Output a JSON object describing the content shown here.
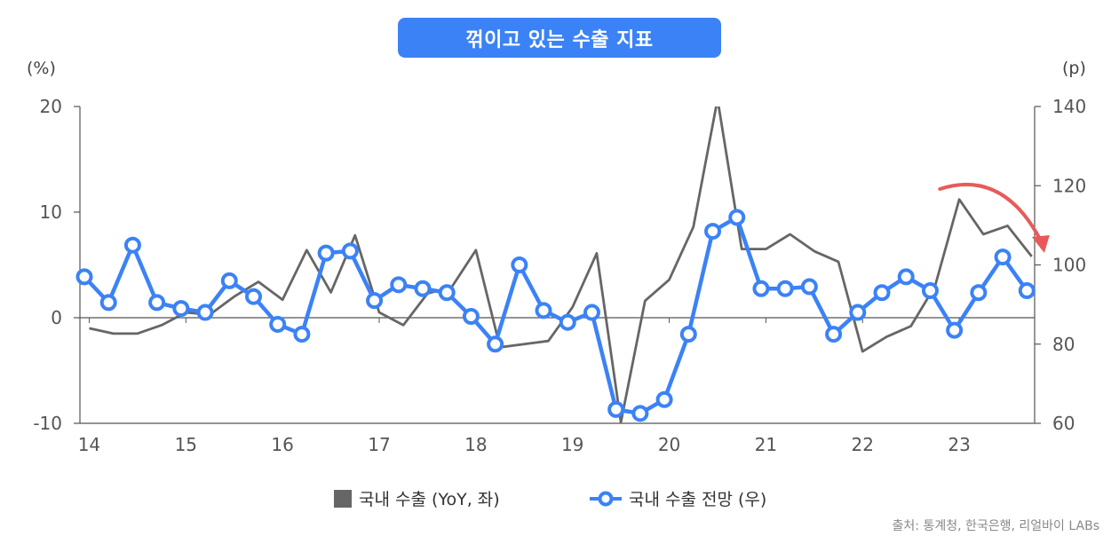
{
  "title": "꺾이고 있는 수출 지표",
  "source": "출처: 통계청, 한국은행, 리얼바이 LABs",
  "chart_data": {
    "type": "line",
    "left_axis": {
      "unit_label": "(%)",
      "ylim": [
        -10,
        20
      ],
      "ticks": [
        "20",
        "10",
        "0",
        "-10"
      ],
      "tick_values": [
        20,
        10,
        0,
        -10
      ]
    },
    "right_axis": {
      "unit_label": "(p)",
      "ylim": [
        60,
        140
      ],
      "ticks": [
        "140",
        "120",
        "100",
        "80",
        "60"
      ],
      "tick_values": [
        140,
        120,
        100,
        80,
        60
      ]
    },
    "x_ticks": [
      "14",
      "15",
      "16",
      "17",
      "18",
      "19",
      "20",
      "21",
      "22",
      "23"
    ],
    "x_tick_values": [
      2014,
      2015,
      2016,
      2017,
      2018,
      2019,
      2020,
      2021,
      2022,
      2023
    ],
    "xlim": [
      2013.95,
      2023.78
    ],
    "series": [
      {
        "name": "국내 수출 (YoY, 좌)",
        "axis": "left",
        "color": "#666666",
        "x": [
          2014.0,
          2014.25,
          2014.5,
          2014.75,
          2015.0,
          2015.25,
          2015.5,
          2015.75,
          2016.0,
          2016.25,
          2016.5,
          2016.75,
          2017.0,
          2017.25,
          2017.5,
          2017.75,
          2018.0,
          2018.25,
          2018.5,
          2018.75,
          2019.0,
          2019.25,
          2019.5,
          2019.75,
          2020.0,
          2020.25,
          2020.5,
          2020.75,
          2021.0,
          2021.25,
          2021.5,
          2021.75,
          2022.0,
          2022.25,
          2022.5,
          2022.75,
          2023.0,
          2023.25,
          2023.5,
          2023.75
        ],
        "values": [
          -1.0,
          -1.5,
          -1.5,
          -0.7,
          0.5,
          0.3,
          2.0,
          3.4,
          1.7,
          6.4,
          2.4,
          7.8,
          0.5,
          -0.7,
          2.3,
          2.9,
          6.4,
          -2.8,
          -2.5,
          -2.2,
          1.0,
          6.1,
          -9.9,
          1.6,
          3.6,
          8.6,
          20.7,
          6.5,
          6.5,
          7.9,
          6.3,
          5.3,
          -3.2,
          -1.8,
          -0.8,
          3.0,
          11.2,
          7.9,
          8.7,
          5.8
        ]
      },
      {
        "name": "국내 수출 전망 (우)",
        "axis": "right",
        "color": "#3b82f6",
        "x": [
          2013.95,
          2014.2,
          2014.45,
          2014.7,
          2014.95,
          2015.2,
          2015.45,
          2015.7,
          2015.95,
          2016.2,
          2016.45,
          2016.7,
          2016.95,
          2017.2,
          2017.45,
          2017.7,
          2017.95,
          2018.2,
          2018.45,
          2018.7,
          2018.95,
          2019.2,
          2019.45,
          2019.7,
          2019.95,
          2020.2,
          2020.45,
          2020.7,
          2020.95,
          2021.2,
          2021.45,
          2021.7,
          2021.95,
          2022.2,
          2022.45,
          2022.7,
          2022.95,
          2023.2,
          2023.45,
          2023.7
        ],
        "values": [
          97.0,
          90.5,
          105.0,
          90.5,
          89.0,
          88.0,
          96.0,
          92.0,
          85.0,
          82.5,
          103.0,
          103.5,
          91.0,
          95.0,
          94.0,
          93.0,
          87.0,
          80.0,
          100.0,
          88.5,
          85.5,
          88.0,
          63.5,
          62.5,
          66.0,
          82.5,
          108.5,
          112.0,
          94.0,
          94.0,
          94.5,
          82.5,
          88.0,
          93.0,
          97.0,
          93.5,
          83.5,
          93.0,
          102.0,
          93.5
        ]
      }
    ],
    "annotation": "downward-trend-arrow",
    "annotation_color": "#e85a5a",
    "grid": false,
    "legend_position": "bottom-center"
  }
}
